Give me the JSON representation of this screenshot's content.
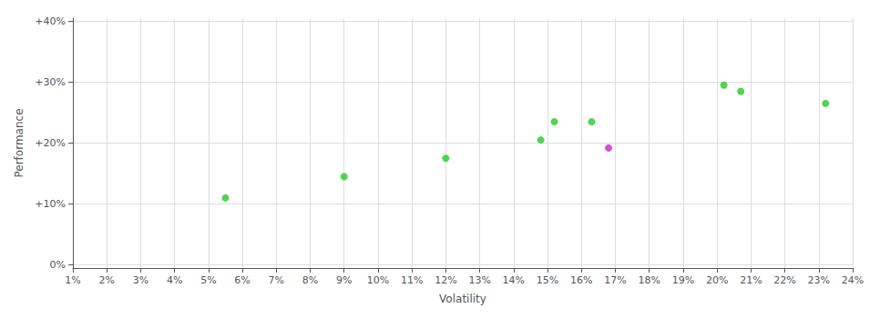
{
  "chart_data": {
    "type": "scatter",
    "xlabel": "Volatility",
    "ylabel": "Performance",
    "x": [
      0.055,
      0.09,
      0.12,
      0.148,
      0.152,
      0.163,
      0.168,
      0.202,
      0.207,
      0.232
    ],
    "values": [
      0.11,
      0.145,
      0.175,
      0.205,
      0.235,
      0.235,
      0.192,
      0.295,
      0.285,
      0.265
    ],
    "colors": [
      "#22cc22",
      "#22cc22",
      "#22cc22",
      "#22cc22",
      "#22cc22",
      "#22cc22",
      "#cc22cc",
      "#22cc22",
      "#22cc22",
      "#22cc22"
    ],
    "xlim": [
      0.01,
      0.24
    ],
    "ylim": [
      -0.005,
      0.405
    ],
    "xticks": [
      {
        "value": 0.01,
        "label": "1%"
      },
      {
        "value": 0.02,
        "label": "2%"
      },
      {
        "value": 0.03,
        "label": "3%"
      },
      {
        "value": 0.04,
        "label": "4%"
      },
      {
        "value": 0.05,
        "label": "5%"
      },
      {
        "value": 0.06,
        "label": "6%"
      },
      {
        "value": 0.07,
        "label": "7%"
      },
      {
        "value": 0.08,
        "label": "8%"
      },
      {
        "value": 0.09,
        "label": "9%"
      },
      {
        "value": 0.1,
        "label": "10%"
      },
      {
        "value": 0.11,
        "label": "11%"
      },
      {
        "value": 0.12,
        "label": "12%"
      },
      {
        "value": 0.13,
        "label": "13%"
      },
      {
        "value": 0.14,
        "label": "14%"
      },
      {
        "value": 0.15,
        "label": "15%"
      },
      {
        "value": 0.16,
        "label": "16%"
      },
      {
        "value": 0.17,
        "label": "17%"
      },
      {
        "value": 0.18,
        "label": "18%"
      },
      {
        "value": 0.19,
        "label": "19%"
      },
      {
        "value": 0.2,
        "label": "20%"
      },
      {
        "value": 0.21,
        "label": "21%"
      },
      {
        "value": 0.22,
        "label": "22%"
      },
      {
        "value": 0.23,
        "label": "23%"
      },
      {
        "value": 0.24,
        "label": "24%"
      }
    ],
    "yticks": [
      {
        "value": 0.0,
        "label": "0%"
      },
      {
        "value": 0.1,
        "label": "+10%"
      },
      {
        "value": 0.2,
        "label": "+20%"
      },
      {
        "value": 0.3,
        "label": "+30%"
      },
      {
        "value": 0.4,
        "label": "+40%"
      }
    ],
    "grid": true
  }
}
